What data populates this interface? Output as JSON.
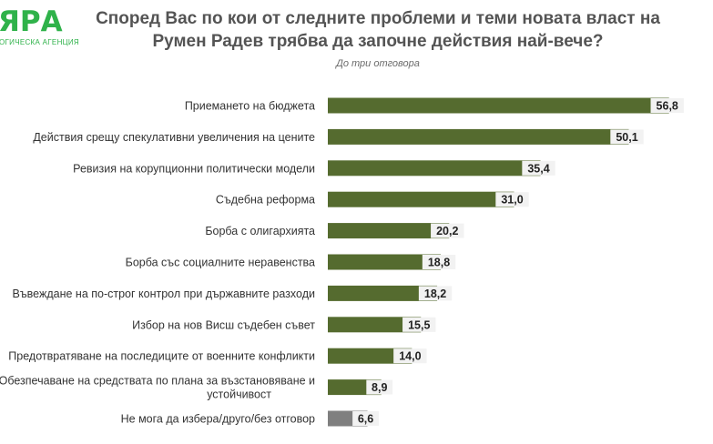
{
  "logo": {
    "mark": "ЯРА",
    "subtitle": "ОГИЧЕСКА АГЕНЦИЯ"
  },
  "colors": {
    "accent": "#556b2f",
    "other": "#7f7f7f",
    "value_box": "#f2f2f2",
    "logo": "#2fb24a"
  },
  "chart_data": {
    "type": "bar",
    "orientation": "horizontal",
    "title_lines": [
      "Според Вас по кои от следните проблеми и теми новата власт на",
      "Румен Радев трябва да започне действия най-вече?"
    ],
    "subtitle": "До три отговора",
    "categories": [
      [
        "Приемането на бюджета"
      ],
      [
        "Действия срещу спекулативни увеличения на цените"
      ],
      [
        "Ревизия на корупционни политически модели"
      ],
      [
        "Съдебна реформа"
      ],
      [
        "Борба с олигархията"
      ],
      [
        "Борба със социалните неравенства"
      ],
      [
        "Въвеждане на по-строг контрол при държавните разходи"
      ],
      [
        "Избор на нов Висш съдебен съвет"
      ],
      [
        "Предотвратяване на последиците от военните конфликти"
      ],
      [
        "Обезпечаване на средствата по плана за възстановяване и",
        "устойчивост"
      ],
      [
        "Не мога да избера/друго/без отговор"
      ]
    ],
    "values": [
      56.8,
      50.1,
      35.4,
      31.0,
      20.2,
      18.8,
      18.2,
      15.5,
      14.0,
      8.9,
      6.6
    ],
    "value_labels": [
      "56,8",
      "50,1",
      "35,4",
      "31,0",
      "20,2",
      "18,8",
      "18,2",
      "15,5",
      "14,0",
      "8,9",
      "6,6"
    ],
    "highlight": [
      false,
      false,
      false,
      false,
      false,
      false,
      false,
      false,
      false,
      false,
      true
    ],
    "xlim": [
      0,
      57.6
    ],
    "grid": false,
    "legend": "none"
  }
}
